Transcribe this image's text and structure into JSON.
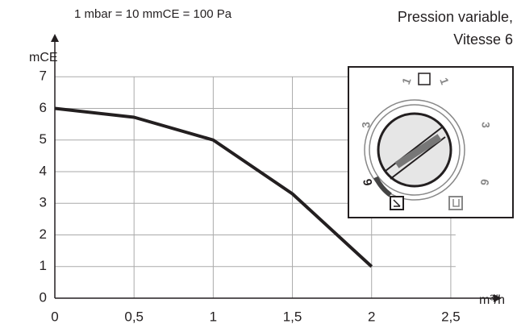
{
  "chart_data": {
    "type": "line",
    "note": "1 mbar = 10 mmCE = 100 Pa",
    "title_lines": [
      "Pression variable,",
      "Vitesse 6"
    ],
    "ylabel": "mCE",
    "xlabel": "m³/h",
    "x": [
      0,
      0.5,
      1,
      1.5,
      2
    ],
    "series": [
      {
        "color": "#231f20",
        "values": [
          6,
          5.72,
          5.0,
          3.3,
          1.0
        ]
      }
    ],
    "xlim": [
      0,
      2.75
    ],
    "ylim": [
      0,
      8
    ],
    "xticks": [
      0,
      {
        "value": 0.5,
        "label": "0,5"
      },
      1,
      {
        "value": 1.5,
        "label": "1,5"
      },
      2,
      {
        "value": 2.5,
        "label": "2,5"
      }
    ],
    "yticks": [
      0,
      1,
      2,
      3,
      4,
      5,
      6,
      7
    ],
    "grid": true
  },
  "dial_labels": [
    "1",
    "1",
    "3",
    "3",
    "6",
    "6"
  ]
}
